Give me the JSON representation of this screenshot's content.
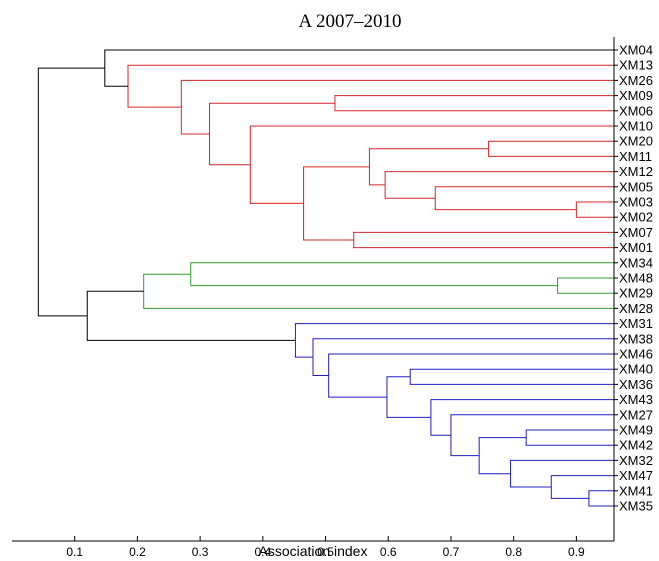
{
  "chart_data": {
    "type": "dendrogram",
    "title": "A 2007–2010",
    "xlabel": "Association index",
    "ylabel": "",
    "xlim": [
      0,
      0.96
    ],
    "xticks": [
      0.1,
      0.2,
      0.3,
      0.4,
      0.5,
      0.6,
      0.7,
      0.8,
      0.9
    ],
    "tick_labels": [
      "0.1",
      "0.2",
      "0.3",
      "0.4",
      "0.5",
      "0.6",
      "0.7",
      "0.8",
      "0.9"
    ],
    "grid": false,
    "colors": {
      "red": "#d62728",
      "green": "#2ca02c",
      "blue": "#1f1fc8",
      "black": "#000000"
    },
    "leaves": [
      "XM04",
      "XM13",
      "XM26",
      "XM09",
      "XM06",
      "XM10",
      "XM20",
      "XM11",
      "XM12",
      "XM05",
      "XM03",
      "XM02",
      "XM07",
      "XM01",
      "XM34",
      "XM48",
      "XM29",
      "XM28",
      "XM31",
      "XM38",
      "XM46",
      "XM40",
      "XM36",
      "XM43",
      "XM27",
      "XM49",
      "XM42",
      "XM32",
      "XM47",
      "XM41",
      "XM35"
    ],
    "merges": [
      {
        "a": "XM03",
        "b": "XM02",
        "value": 0.9,
        "color": "red",
        "id": "r1"
      },
      {
        "a": "XM05",
        "b": "r1",
        "value": 0.675,
        "color": "red",
        "id": "r2"
      },
      {
        "a": "XM12",
        "b": "r2",
        "value": 0.595,
        "color": "red",
        "id": "r3"
      },
      {
        "a": "XM20",
        "b": "XM11",
        "value": 0.76,
        "color": "red",
        "id": "r4"
      },
      {
        "a": "r4",
        "b": "r3",
        "value": 0.57,
        "color": "red",
        "id": "r5"
      },
      {
        "a": "XM07",
        "b": "XM01",
        "value": 0.545,
        "color": "red",
        "id": "r6"
      },
      {
        "a": "r5",
        "b": "r6",
        "value": 0.465,
        "color": "red",
        "id": "r7"
      },
      {
        "a": "XM10",
        "b": "r7",
        "value": 0.38,
        "color": "red",
        "id": "r8"
      },
      {
        "a": "XM09",
        "b": "XM06",
        "value": 0.515,
        "color": "red",
        "id": "r9"
      },
      {
        "a": "r9",
        "b": "r8",
        "value": 0.315,
        "color": "red",
        "id": "r10"
      },
      {
        "a": "XM26",
        "b": "r10",
        "value": 0.27,
        "color": "red",
        "id": "r11"
      },
      {
        "a": "XM13",
        "b": "r11",
        "value": 0.185,
        "color": "red",
        "id": "r12"
      },
      {
        "a": "XM04",
        "b": "r12",
        "value": 0.148,
        "color": "black",
        "id": "k1"
      },
      {
        "a": "XM48",
        "b": "XM29",
        "value": 0.87,
        "color": "green",
        "id": "g1"
      },
      {
        "a": "XM34",
        "b": "g1",
        "value": 0.285,
        "color": "green",
        "id": "g2"
      },
      {
        "a": "g2",
        "b": "XM28",
        "value": 0.21,
        "color": "green",
        "id": "g3"
      },
      {
        "a": "XM41",
        "b": "XM35",
        "value": 0.92,
        "color": "blue",
        "id": "b1"
      },
      {
        "a": "XM47",
        "b": "b1",
        "value": 0.86,
        "color": "blue",
        "id": "b2"
      },
      {
        "a": "XM32",
        "b": "b2",
        "value": 0.795,
        "color": "blue",
        "id": "b3"
      },
      {
        "a": "XM49",
        "b": "XM42",
        "value": 0.82,
        "color": "blue",
        "id": "b4"
      },
      {
        "a": "b4",
        "b": "b3",
        "value": 0.745,
        "color": "blue",
        "id": "b5"
      },
      {
        "a": "XM27",
        "b": "b5",
        "value": 0.7,
        "color": "blue",
        "id": "b6"
      },
      {
        "a": "XM43",
        "b": "b6",
        "value": 0.668,
        "color": "blue",
        "id": "b7"
      },
      {
        "a": "XM40",
        "b": "XM36",
        "value": 0.635,
        "color": "blue",
        "id": "b8"
      },
      {
        "a": "b8",
        "b": "b7",
        "value": 0.598,
        "color": "blue",
        "id": "b9"
      },
      {
        "a": "XM46",
        "b": "b9",
        "value": 0.505,
        "color": "blue",
        "id": "b10"
      },
      {
        "a": "XM38",
        "b": "b10",
        "value": 0.48,
        "color": "blue",
        "id": "b11"
      },
      {
        "a": "XM31",
        "b": "b11",
        "value": 0.452,
        "color": "blue",
        "id": "b12"
      },
      {
        "a": "g3",
        "b": "b12",
        "value": 0.12,
        "color": "black",
        "id": "k2"
      },
      {
        "a": "k1",
        "b": "k2",
        "value": 0.042,
        "color": "black",
        "id": "k3"
      }
    ]
  }
}
